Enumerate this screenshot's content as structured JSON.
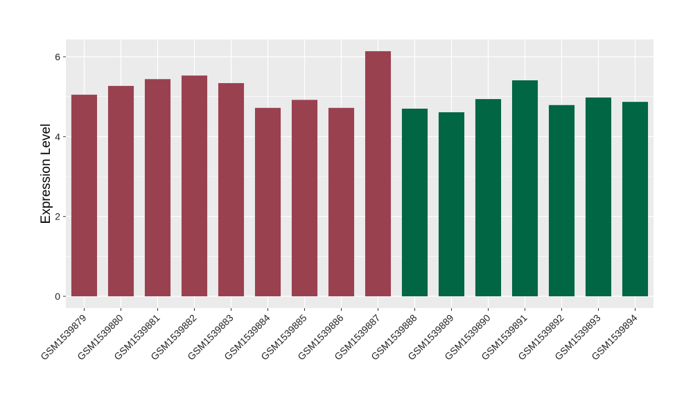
{
  "chart_data": {
    "type": "bar",
    "title": "",
    "xlabel": "",
    "ylabel": "Expression Level",
    "ylim": [
      -0.3,
      6.45
    ],
    "yticks": [
      0,
      2,
      4,
      6
    ],
    "grid": true,
    "categories": [
      "GSM1539879",
      "GSM1539880",
      "GSM1539881",
      "GSM1539882",
      "GSM1539883",
      "GSM1539884",
      "GSM1539885",
      "GSM1539886",
      "GSM1539887",
      "GSM1539888",
      "GSM1539889",
      "GSM1539890",
      "GSM1539891",
      "GSM1539892",
      "GSM1539893",
      "GSM1539894"
    ],
    "values": [
      5.05,
      5.27,
      5.44,
      5.53,
      5.34,
      4.72,
      4.92,
      4.72,
      6.14,
      4.7,
      4.61,
      4.94,
      5.41,
      4.79,
      4.98,
      4.87
    ],
    "groups": [
      0,
      0,
      0,
      0,
      0,
      0,
      0,
      0,
      0,
      1,
      1,
      1,
      1,
      1,
      1,
      1
    ],
    "group_colors": [
      "#9A4150",
      "#006644"
    ],
    "panel_background": "#EBEBEB"
  }
}
